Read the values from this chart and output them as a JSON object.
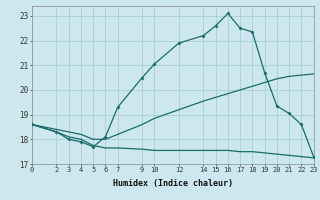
{
  "xlabel": "Humidex (Indice chaleur)",
  "background_color": "#cce8ee",
  "grid_color": "#aacdd6",
  "line_color": "#1a6b6b",
  "xlim": [
    0,
    23
  ],
  "ylim": [
    17,
    23.4
  ],
  "xticks": [
    0,
    2,
    3,
    4,
    5,
    6,
    7,
    9,
    10,
    12,
    14,
    15,
    16,
    17,
    18,
    19,
    20,
    21,
    22,
    23
  ],
  "yticks": [
    17,
    18,
    19,
    20,
    21,
    22,
    23
  ],
  "curve1_x": [
    0,
    2,
    3,
    4,
    5,
    6,
    7,
    9,
    10,
    12,
    14,
    15,
    16,
    17,
    18,
    19,
    20,
    21,
    22,
    23
  ],
  "curve1_y": [
    18.6,
    18.3,
    18.0,
    17.9,
    17.7,
    18.1,
    19.3,
    20.5,
    21.05,
    21.9,
    22.2,
    22.6,
    23.1,
    22.5,
    22.35,
    20.7,
    19.35,
    19.05,
    18.6,
    17.3
  ],
  "curve2_x": [
    0,
    3,
    4,
    5,
    6,
    7,
    9,
    10,
    12,
    14,
    15,
    16,
    17,
    18,
    19,
    20,
    21,
    22,
    23
  ],
  "curve2_y": [
    18.6,
    18.3,
    18.2,
    18.0,
    18.0,
    18.2,
    18.6,
    18.85,
    19.2,
    19.55,
    19.7,
    19.85,
    20.0,
    20.15,
    20.3,
    20.45,
    20.55,
    20.6,
    20.65
  ],
  "curve3_x": [
    0,
    2,
    3,
    4,
    5,
    6,
    7,
    9,
    10,
    12,
    14,
    15,
    16,
    17,
    18,
    19,
    20,
    21,
    22,
    23
  ],
  "curve3_y": [
    18.6,
    18.3,
    18.1,
    18.0,
    17.75,
    17.65,
    17.65,
    17.6,
    17.55,
    17.55,
    17.55,
    17.55,
    17.55,
    17.5,
    17.5,
    17.45,
    17.4,
    17.35,
    17.3,
    17.25
  ]
}
